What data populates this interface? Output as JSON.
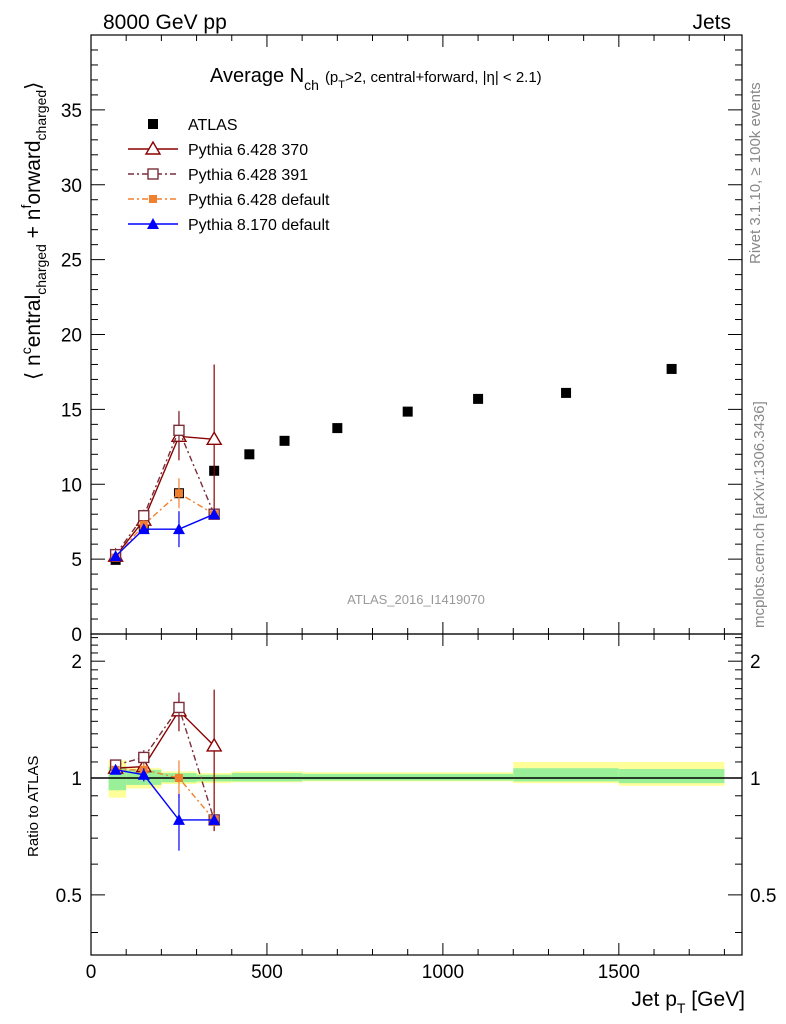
{
  "header": {
    "left": "8000 GeV pp",
    "right": "Jets"
  },
  "side_labels": {
    "rivet": "Rivet 3.1.10, ≥ 100k events",
    "mcplots": "mcplots.cern.ch [arXiv:1306.3436]"
  },
  "chart_data": {
    "type": "scatter",
    "title": {
      "main": "Average N",
      "main_sub": "ch",
      "paren_open": "(p",
      "paren_sub": "T",
      "paren_rest": ">2, central+forward, |η| < 2.1)"
    },
    "analysis_id": "ATLAS_2016_I1419070",
    "xlabel": {
      "main": "Jet p",
      "sub": "T",
      "unit": " [GeV]"
    },
    "ylabel": {
      "open": "⟨ n",
      "sup1": "c",
      "part1": "entral",
      "sub1": "charged",
      "plus": " + n",
      "sup2": "f",
      "part2": "orward",
      "sub2": "charged",
      "close": "⟩"
    },
    "ratio_ylabel": "Ratio to ATLAS",
    "xlim": [
      0,
      1850
    ],
    "ylim": [
      0,
      40
    ],
    "ratio_ylim": [
      0.35,
      2.35
    ],
    "x_ticks": [
      "0",
      "500",
      "1000",
      "1500"
    ],
    "y_ticks": [
      "0",
      "5",
      "10",
      "15",
      "20",
      "25",
      "30",
      "35"
    ],
    "ratio_ticks": [
      "0.5",
      "1",
      "2"
    ],
    "grid": false,
    "legend_position": "top-left",
    "series": [
      {
        "name": "ATLAS",
        "color": "#000000",
        "marker": "square-filled",
        "points": [
          {
            "x": 70,
            "y": 4.95,
            "xerr": 20
          },
          {
            "x": 150,
            "y": 7.1,
            "xerr": 20
          },
          {
            "x": 250,
            "y": 9.4,
            "xerr": 50
          },
          {
            "x": 350,
            "y": 10.9,
            "xerr": 50
          },
          {
            "x": 450,
            "y": 12.0,
            "xerr": 50
          },
          {
            "x": 550,
            "y": 12.9,
            "xerr": 50
          },
          {
            "x": 700,
            "y": 13.75,
            "xerr": 100
          },
          {
            "x": 900,
            "y": 14.85,
            "xerr": 100
          },
          {
            "x": 1100,
            "y": 15.7,
            "xerr": 100
          },
          {
            "x": 1350,
            "y": 16.1,
            "xerr": 150
          },
          {
            "x": 1650,
            "y": 17.7,
            "xerr": 150
          }
        ],
        "ratio_bands": [
          {
            "x0": 50,
            "x1": 100,
            "y0": 0.93,
            "y1": 1.07,
            "y0o": 0.89,
            "y1o": 1.11
          },
          {
            "x0": 100,
            "x1": 200,
            "y0": 0.96,
            "y1": 1.05,
            "y0o": 0.94,
            "y1o": 1.06
          },
          {
            "x0": 200,
            "x1": 300,
            "y0": 0.975,
            "y1": 1.03,
            "y0o": 0.965,
            "y1o": 1.04
          },
          {
            "x0": 300,
            "x1": 400,
            "y0": 0.98,
            "y1": 1.02,
            "y0o": 0.97,
            "y1o": 1.03
          },
          {
            "x0": 400,
            "x1": 600,
            "y0": 0.98,
            "y1": 1.03,
            "y0o": 0.975,
            "y1o": 1.04
          },
          {
            "x0": 600,
            "x1": 1200,
            "y0": 0.985,
            "y1": 1.025,
            "y0o": 0.98,
            "y1o": 1.035
          },
          {
            "x0": 1200,
            "x1": 1500,
            "y0": 0.98,
            "y1": 1.06,
            "y0o": 0.97,
            "y1o": 1.1
          },
          {
            "x0": 1500,
            "x1": 1800,
            "y0": 0.97,
            "y1": 1.055,
            "y0o": 0.955,
            "y1o": 1.1
          }
        ]
      },
      {
        "name": "Pythia 6.428 370",
        "color": "#8b0000",
        "marker": "triangle-open",
        "linestyle": "solid",
        "points": [
          {
            "x": 70,
            "y": 5.2,
            "err": 0.1
          },
          {
            "x": 150,
            "y": 7.6,
            "err": 0.4
          },
          {
            "x": 250,
            "y": 13.2,
            "err": 1.6
          },
          {
            "x": 350,
            "y": 13.0,
            "err": 5.0
          }
        ],
        "ratio": [
          1.06,
          1.07,
          1.49,
          1.21
        ],
        "ratio_err": [
          0.02,
          0.05,
          0.17,
          0.48
        ]
      },
      {
        "name": "Pythia 6.428 391",
        "color": "#7a2e3a",
        "marker": "square-open",
        "linestyle": "dashdot",
        "points": [
          {
            "x": 70,
            "y": 5.3,
            "err": 0.1
          },
          {
            "x": 150,
            "y": 7.9,
            "err": 0.4
          },
          {
            "x": 250,
            "y": 13.6,
            "err": 1.3
          },
          {
            "x": 350,
            "y": 8.0,
            "err": 0.3
          }
        ],
        "ratio": [
          1.08,
          1.13,
          1.52,
          0.78
        ],
        "ratio_err": [
          0.02,
          0.05,
          0.14,
          0.03
        ]
      },
      {
        "name": "Pythia 6.428 default",
        "color": "#f08030",
        "marker": "square-filled-small",
        "linestyle": "dashdot",
        "points": [
          {
            "x": 70,
            "y": 5.1,
            "err": 0.1
          },
          {
            "x": 150,
            "y": 7.3,
            "err": 0.3
          },
          {
            "x": 250,
            "y": 9.4,
            "err": 1.0
          },
          {
            "x": 350,
            "y": 8.0,
            "err": 0.3
          }
        ],
        "ratio": [
          1.05,
          1.05,
          1.0,
          0.78
        ],
        "ratio_err": [
          0.02,
          0.04,
          0.11,
          0.03
        ]
      },
      {
        "name": "Pythia 8.170 default",
        "color": "#0000ff",
        "marker": "triangle-filled",
        "linestyle": "solid",
        "points": [
          {
            "x": 70,
            "y": 5.2,
            "err": 0.1
          },
          {
            "x": 150,
            "y": 7.0,
            "err": 0.3
          },
          {
            "x": 250,
            "y": 7.0,
            "err": 1.2
          },
          {
            "x": 350,
            "y": 8.0,
            "err": 0.2
          }
        ],
        "ratio": [
          1.05,
          1.02,
          0.78,
          0.78
        ],
        "ratio_err": [
          0.02,
          0.04,
          0.13,
          0.02
        ]
      }
    ]
  }
}
